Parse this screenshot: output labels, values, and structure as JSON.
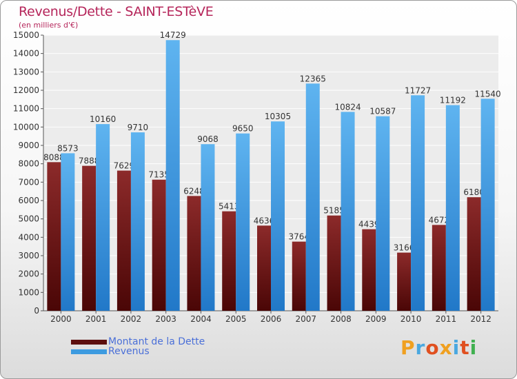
{
  "header": {
    "title": "Revenus/Dette - SAINT-ESTèVE",
    "subtitle": "(en milliers d'€)"
  },
  "chart_data": {
    "type": "bar",
    "categories": [
      "2000",
      "2001",
      "2002",
      "2003",
      "2004",
      "2005",
      "2006",
      "2007",
      "2008",
      "2009",
      "2010",
      "2011",
      "2012"
    ],
    "series": [
      {
        "name": "Montant de la Dette",
        "color": "#7a1e1e",
        "values": [
          8088,
          7888,
          7629,
          7135,
          6248,
          5413,
          4636,
          3764,
          5185,
          4439,
          3166,
          4672,
          6180
        ],
        "labels": [
          "8088",
          "7888",
          "7629",
          "7135",
          "6248",
          "5413",
          "4636",
          "3764",
          "5185",
          "4439",
          "3166",
          "4672",
          "6180"
        ]
      },
      {
        "name": "Revenus",
        "color": "#3d9be0",
        "values": [
          8573,
          10160,
          9710,
          14729,
          9068,
          9650,
          10305,
          12365,
          10824,
          10587,
          11727,
          11192,
          11540
        ],
        "labels": [
          "8573",
          "10160",
          "9710",
          "14729",
          "9068",
          "9650",
          "10305",
          "12365",
          "10824",
          "10587",
          "11727",
          "11192",
          "11540"
        ]
      }
    ],
    "ylim": [
      0,
      15000
    ],
    "yticks": [
      0,
      1000,
      2000,
      3000,
      4000,
      5000,
      6000,
      7000,
      8000,
      9000,
      10000,
      11000,
      12000,
      13000,
      14000,
      15000
    ],
    "grid": true,
    "legend_position": "bottom-left"
  },
  "legend": {
    "items": [
      {
        "label": "Montant de la Dette",
        "color": "#5c0e0e"
      },
      {
        "label": "Revenus",
        "color": "#3d9be0"
      }
    ]
  },
  "logo": {
    "text": "Proxiti",
    "colors": [
      "#f0a020",
      "#4aa8e0",
      "#e05020",
      "#f0a020",
      "#4aa8e0",
      "#e05020",
      "#40b050"
    ]
  }
}
